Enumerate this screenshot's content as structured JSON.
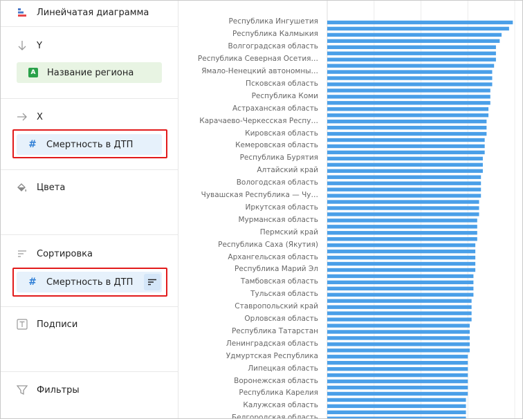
{
  "header": {
    "title": "Линейчатая диаграмма",
    "icon": "bar-chart-icon"
  },
  "sections": {
    "y": {
      "label": "Y",
      "icon": "arrow-down-icon",
      "field": {
        "label": "Название региона",
        "type_badge": "A"
      }
    },
    "x": {
      "label": "X",
      "icon": "arrow-right-icon",
      "field": {
        "label": "Смертность в ДТП",
        "icon": "hash-icon"
      }
    },
    "colors": {
      "label": "Цвета",
      "icon": "paint-bucket-icon"
    },
    "sort": {
      "label": "Сортировка",
      "icon": "sort-lines-icon",
      "field": {
        "label": "Смертность в ДТП",
        "icon": "hash-icon",
        "action_icon": "sort-order-icon"
      }
    },
    "labels": {
      "label": "Подписи",
      "icon": "text-t-icon"
    },
    "filters": {
      "label": "Фильтры",
      "icon": "funnel-icon"
    }
  },
  "colors": {
    "bar": "#4a9fe8",
    "highlight": "#e21a1a",
    "dimension": "#2aa14a",
    "measure": "#2f7fd6"
  },
  "chart_data": {
    "type": "bar",
    "orientation": "horizontal",
    "categories": [
      "Республика Ингушетия",
      "",
      "Республика Калмыкия",
      "",
      "Волгоградская область",
      "",
      "Республика Северная Осетия…",
      "",
      "Ямало-Ненецкий автономны…",
      "",
      "Псковская область",
      "",
      "Республика Коми",
      "",
      "Астраханская область",
      "",
      "Карачаево-Черкесская Респу…",
      "",
      "Кировская область",
      "",
      "Кемеровская область",
      "",
      "Республика Бурятия",
      "",
      "Алтайский край",
      "",
      "Вологодская область",
      "",
      "Чувашская Республика — Чу…",
      "",
      "Иркутская область",
      "",
      "Мурманская область",
      "",
      "Пермский край",
      "",
      "Республика Саха (Якутия)",
      "",
      "Архангельская область",
      "",
      "Республика Марий Эл",
      "",
      "Тамбовская область",
      "",
      "Тульская область",
      "",
      "Ставропольский край",
      "",
      "Орловская область",
      "",
      "Республика Татарстан",
      "",
      "Ленинградская область",
      "",
      "Удмуртская Республика",
      "",
      "Липецкая область",
      "",
      "Воронежская область",
      "",
      "Республика Карелия",
      "",
      "Калужская область",
      "",
      "Белгородская область"
    ],
    "values": [
      99,
      97,
      93,
      92,
      90,
      90,
      90,
      89,
      88,
      88,
      88,
      87,
      87,
      87,
      86,
      86,
      85,
      85,
      85,
      84,
      84,
      84,
      83,
      83,
      83,
      82,
      82,
      82,
      82,
      81,
      81,
      81,
      80,
      80,
      80,
      80,
      79,
      79,
      79,
      79,
      79,
      78,
      78,
      78,
      78,
      77,
      77,
      77,
      77,
      76,
      76,
      76,
      76,
      76,
      75,
      75,
      75,
      75,
      75,
      75,
      75,
      74,
      74,
      74,
      74
    ],
    "xlim": [
      0,
      100
    ],
    "grid": true
  }
}
